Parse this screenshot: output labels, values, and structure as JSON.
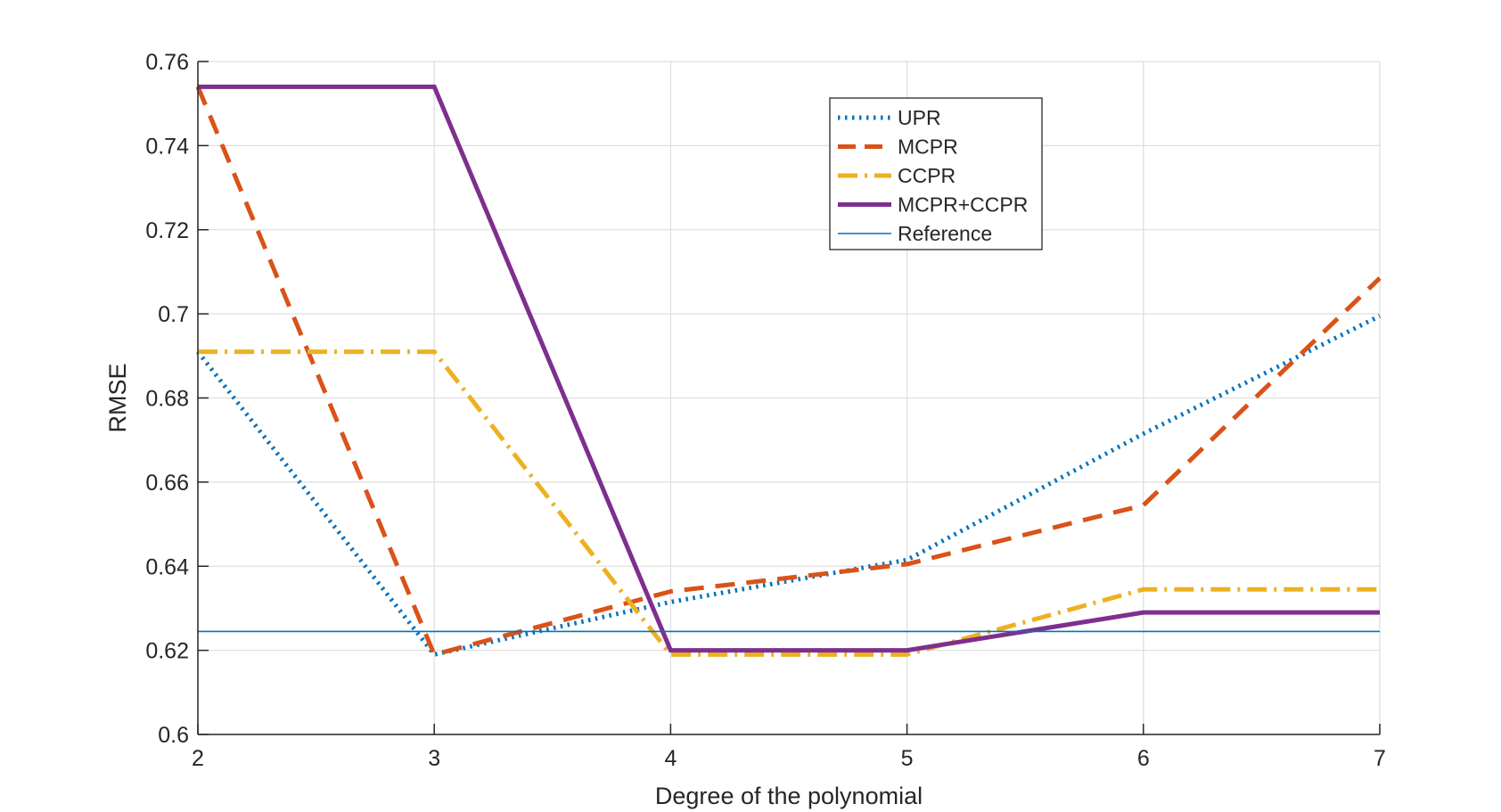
{
  "chart_data": {
    "type": "line",
    "title": "",
    "xlabel": "Degree of the polynomial",
    "ylabel": "RMSE",
    "x": [
      2,
      3,
      4,
      5,
      6,
      7
    ],
    "xlim": [
      2,
      7
    ],
    "ylim": [
      0.6,
      0.76
    ],
    "xticks": [
      2,
      3,
      4,
      5,
      6,
      7
    ],
    "xtick_labels": [
      "2",
      "3",
      "4",
      "5",
      "6",
      "7"
    ],
    "yticks": [
      0.6,
      0.62,
      0.64,
      0.66,
      0.68,
      0.7,
      0.72,
      0.74,
      0.76
    ],
    "ytick_labels": [
      "0.6",
      "0.62",
      "0.64",
      "0.66",
      "0.68",
      "0.7",
      "0.72",
      "0.74",
      "0.76"
    ],
    "grid": true,
    "legend_position": "top-right",
    "series": [
      {
        "name": "UPR",
        "values": [
          0.691,
          0.619,
          0.6315,
          0.6415,
          0.6715,
          0.6995
        ],
        "color": "#0072BD",
        "style": "dotted"
      },
      {
        "name": "MCPR",
        "values": [
          0.754,
          0.619,
          0.634,
          0.6405,
          0.6545,
          0.7085
        ],
        "color": "#D95319",
        "style": "dashed"
      },
      {
        "name": "CCPR",
        "values": [
          0.691,
          0.691,
          0.619,
          0.619,
          0.6345,
          0.6345
        ],
        "color": "#EDB120",
        "style": "dashdot"
      },
      {
        "name": "MCPR+CCPR",
        "values": [
          0.754,
          0.754,
          0.62,
          0.62,
          0.629,
          0.629
        ],
        "color": "#7E2F8E",
        "style": "solid"
      },
      {
        "name": "Reference",
        "values": [
          0.6245,
          0.6245,
          0.6245,
          0.6245,
          0.6245,
          0.6245
        ],
        "color": "#0072BD",
        "style": "thin"
      }
    ]
  }
}
